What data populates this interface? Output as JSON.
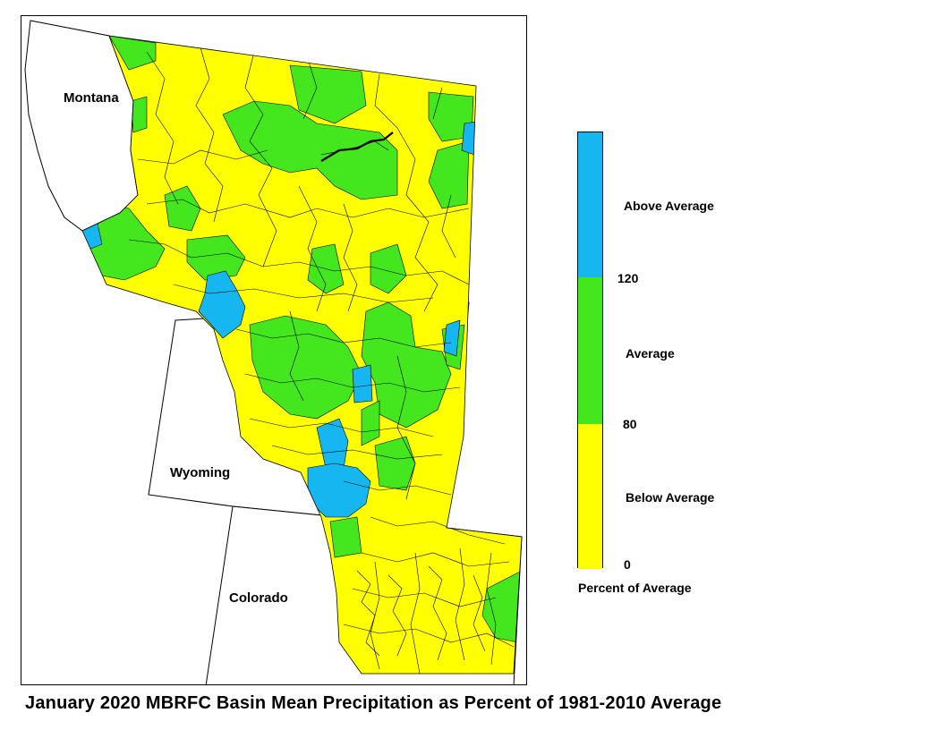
{
  "map": {
    "states": {
      "montana": "Montana",
      "wyoming": "Wyoming",
      "colorado": "Colorado"
    }
  },
  "legend": {
    "colors": {
      "above": "#16b6f0",
      "average": "#44e61e",
      "below": "#ffff00"
    },
    "labels": {
      "above": "Above Average",
      "average": "Average",
      "below": "Below Average"
    },
    "ticks": {
      "t120": "120",
      "t80": "80",
      "t0": "0"
    },
    "title": "Percent of Average"
  },
  "caption": "January 2020 MBRFC Basin Mean Precipitation as Percent of 1981-2010 Average"
}
